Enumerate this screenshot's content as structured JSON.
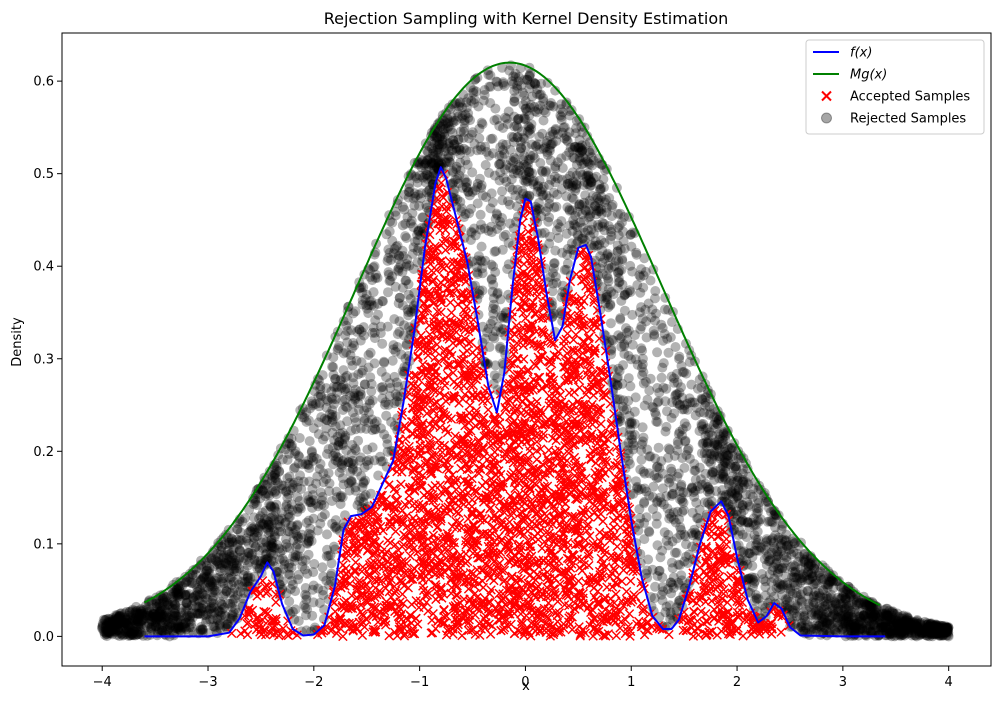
{
  "chart_data": {
    "type": "scatter",
    "title": "Rejection Sampling with Kernel Density Estimation",
    "xlabel": "x",
    "ylabel": "Density",
    "xlim": [
      -4.38,
      4.4
    ],
    "ylim": [
      -0.032,
      0.652
    ],
    "xticks": [
      -4,
      -3,
      -2,
      -1,
      0,
      1,
      2,
      3,
      4
    ],
    "yticks": [
      0.0,
      0.1,
      0.2,
      0.3,
      0.4,
      0.5,
      0.6
    ],
    "xtick_labels": [
      "−4",
      "−3",
      "−2",
      "−1",
      "0",
      "1",
      "2",
      "3",
      "4"
    ],
    "ytick_labels": [
      "0.0",
      "0.1",
      "0.2",
      "0.3",
      "0.4",
      "0.5",
      "0.6"
    ],
    "grid": false,
    "legend_position": "top-right",
    "series": [
      {
        "name": "f(x)",
        "kind": "line",
        "color": "#0000ff",
        "x": [
          -3.6,
          -3.0,
          -2.8,
          -2.7,
          -2.6,
          -2.5,
          -2.44,
          -2.38,
          -2.3,
          -2.2,
          -2.1,
          -2.0,
          -1.9,
          -1.8,
          -1.72,
          -1.65,
          -1.55,
          -1.45,
          -1.35,
          -1.25,
          -1.15,
          -1.05,
          -0.95,
          -0.85,
          -0.8,
          -0.75,
          -0.65,
          -0.55,
          -0.45,
          -0.35,
          -0.27,
          -0.2,
          -0.12,
          -0.05,
          0.0,
          0.05,
          0.12,
          0.2,
          0.28,
          0.35,
          0.42,
          0.5,
          0.57,
          0.62,
          0.7,
          0.8,
          0.9,
          1.0,
          1.1,
          1.2,
          1.3,
          1.38,
          1.45,
          1.55,
          1.65,
          1.75,
          1.85,
          1.92,
          2.0,
          2.1,
          2.2,
          2.28,
          2.35,
          2.42,
          2.5,
          2.6,
          3.0,
          3.4
        ],
        "y": [
          0.0,
          0.0,
          0.004,
          0.02,
          0.048,
          0.065,
          0.08,
          0.07,
          0.035,
          0.008,
          0.001,
          0.002,
          0.012,
          0.055,
          0.115,
          0.13,
          0.132,
          0.14,
          0.165,
          0.19,
          0.255,
          0.33,
          0.42,
          0.49,
          0.507,
          0.495,
          0.45,
          0.405,
          0.34,
          0.27,
          0.242,
          0.285,
          0.38,
          0.45,
          0.473,
          0.47,
          0.43,
          0.37,
          0.32,
          0.335,
          0.385,
          0.42,
          0.423,
          0.41,
          0.355,
          0.28,
          0.2,
          0.125,
          0.063,
          0.022,
          0.008,
          0.008,
          0.018,
          0.055,
          0.1,
          0.135,
          0.146,
          0.13,
          0.085,
          0.04,
          0.015,
          0.022,
          0.036,
          0.03,
          0.01,
          0.001,
          0.0,
          0.0
        ]
      },
      {
        "name": "Mg(x)",
        "kind": "line",
        "color": "#008000",
        "mu": -0.15,
        "sigma": 1.45,
        "peak": 0.62,
        "x_range": [
          -3.6,
          3.35
        ]
      },
      {
        "name": "Accepted Samples",
        "kind": "scatter",
        "marker": "x",
        "color": "#ff0000",
        "region": "under f(x)",
        "n": 3200
      },
      {
        "name": "Rejected Samples",
        "kind": "scatter",
        "marker": "o",
        "color": "#000000",
        "alpha": 0.3,
        "region": "between f(x) and Mg(x), x in [-4, 4]",
        "n": 4300
      }
    ],
    "legend": [
      {
        "label": "f(x)",
        "symbol": "line",
        "color": "#0000ff"
      },
      {
        "label": "Mg(x)",
        "symbol": "line",
        "color": "#008000"
      },
      {
        "label": "Accepted Samples",
        "symbol": "x",
        "color": "#ff0000"
      },
      {
        "label": "Rejected Samples",
        "symbol": "o",
        "color": "#7f7f7f"
      }
    ]
  }
}
